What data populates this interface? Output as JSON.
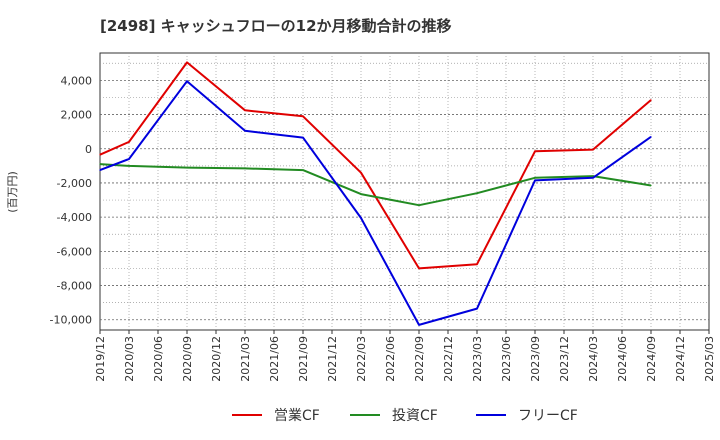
{
  "chart_data": {
    "type": "line",
    "title": "[2498]  キャッシュフローの12か月移動合計の推移",
    "ylabel": "(百万円)",
    "xlabel": "",
    "ylim": [
      -10600,
      5600
    ],
    "yticks": [
      4000,
      2000,
      0,
      -2000,
      -4000,
      -6000,
      -8000,
      -10000
    ],
    "ytick_labels": [
      "4,000",
      "2,000",
      "0",
      "-2,000",
      "-4,000",
      "-6,000",
      "-8,000",
      "-10,000"
    ],
    "categories": [
      "2019/12",
      "2020/03",
      "2020/06",
      "2020/09",
      "2020/12",
      "2021/03",
      "2021/06",
      "2021/09",
      "2021/12",
      "2022/03",
      "2022/06",
      "2022/09",
      "2022/12",
      "2023/03",
      "2023/06",
      "2023/09",
      "2023/12",
      "2024/03",
      "2024/06",
      "2024/09",
      "2024/12",
      "2025/03"
    ],
    "grid": true,
    "legend_position": "bottom",
    "series": [
      {
        "name": "営業CF",
        "color": "#e00000",
        "values": [
          -350,
          400,
          null,
          5050,
          null,
          2250,
          null,
          1900,
          null,
          -1400,
          null,
          -7000,
          null,
          -6750,
          null,
          -150,
          null,
          -50,
          null,
          2850,
          null,
          null
        ]
      },
      {
        "name": "投資CF",
        "color": "#228b22",
        "values": [
          -900,
          -1000,
          null,
          -1100,
          null,
          -1150,
          null,
          -1250,
          null,
          -2650,
          null,
          -3300,
          null,
          -2600,
          null,
          -1700,
          null,
          -1600,
          null,
          -2150,
          null,
          null
        ]
      },
      {
        "name": "フリーCF",
        "color": "#0000dd",
        "values": [
          -1250,
          -600,
          null,
          3950,
          null,
          1050,
          null,
          650,
          null,
          -4050,
          null,
          -10300,
          null,
          -9350,
          null,
          -1850,
          null,
          -1700,
          null,
          700,
          null,
          null
        ]
      }
    ]
  }
}
